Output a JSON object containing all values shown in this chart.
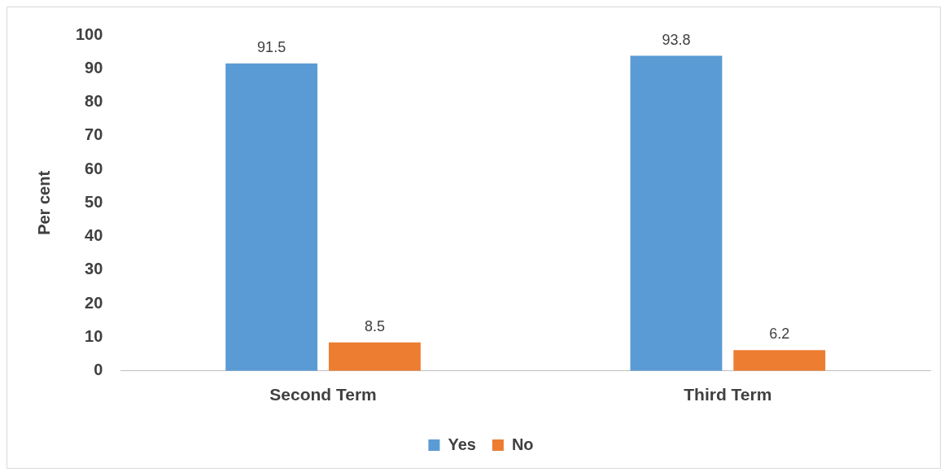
{
  "chart_data": {
    "type": "bar",
    "ylabel": "Per cent",
    "categories": [
      "Second Term",
      "Third Term"
    ],
    "series": [
      {
        "name": "Yes",
        "color": "#5b9bd5",
        "values": [
          91.5,
          93.8
        ]
      },
      {
        "name": "No",
        "color": "#ed7d31",
        "values": [
          8.5,
          6.2
        ]
      }
    ],
    "ylim": [
      0,
      100
    ],
    "yticks": [
      0,
      10,
      20,
      30,
      40,
      50,
      60,
      70,
      80,
      90,
      100
    ],
    "grid": false,
    "legend": "bottom",
    "data_labels": true
  }
}
